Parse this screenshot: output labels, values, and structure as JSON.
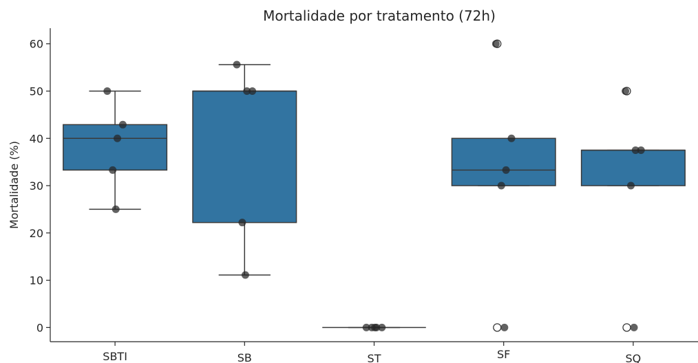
{
  "chart_data": {
    "type": "box",
    "title": "Mortalidade por tratamento (72h)",
    "xlabel": "",
    "ylabel": "Mortalidade (%)",
    "ylim": [
      -3,
      63.3
    ],
    "yticks": [
      0,
      10,
      20,
      30,
      40,
      50,
      60
    ],
    "grid": false,
    "legend": "none",
    "box_color": "#3274a1",
    "line_color": "#3a3a3a",
    "point_color": "#262626",
    "categories": [
      "SBTI",
      "SB",
      "ST",
      "SF",
      "SQ"
    ],
    "boxes": [
      {
        "category": "SBTI",
        "whisker_low": 25,
        "q1": 33.3,
        "median": 40,
        "q3": 42.9,
        "whisker_high": 50,
        "outliers": []
      },
      {
        "category": "SB",
        "whisker_low": 11.1,
        "q1": 22.2,
        "median": 50,
        "q3": 50,
        "whisker_high": 55.6,
        "outliers": []
      },
      {
        "category": "ST",
        "whisker_low": 0,
        "q1": 0,
        "median": 0,
        "q3": 0,
        "whisker_high": 0,
        "outliers": []
      },
      {
        "category": "SF",
        "whisker_low": 30,
        "q1": 30,
        "median": 33.3,
        "q3": 40,
        "whisker_high": 40,
        "outliers": [
          0,
          60
        ]
      },
      {
        "category": "SQ",
        "whisker_low": 30,
        "q1": 30,
        "median": 37.5,
        "q3": 37.5,
        "whisker_high": 37.5,
        "outliers": [
          0,
          50
        ]
      }
    ],
    "points": [
      {
        "category": "SBTI",
        "values": [
          50,
          42.9,
          40,
          33.3,
          25
        ]
      },
      {
        "category": "SB",
        "values": [
          55.6,
          50,
          50,
          22.2,
          11.1
        ]
      },
      {
        "category": "ST",
        "values": [
          0,
          0,
          0,
          0,
          0
        ]
      },
      {
        "category": "SF",
        "values": [
          60,
          40,
          33.3,
          30,
          0
        ]
      },
      {
        "category": "SQ",
        "values": [
          50,
          37.5,
          37.5,
          30,
          0
        ]
      }
    ]
  }
}
